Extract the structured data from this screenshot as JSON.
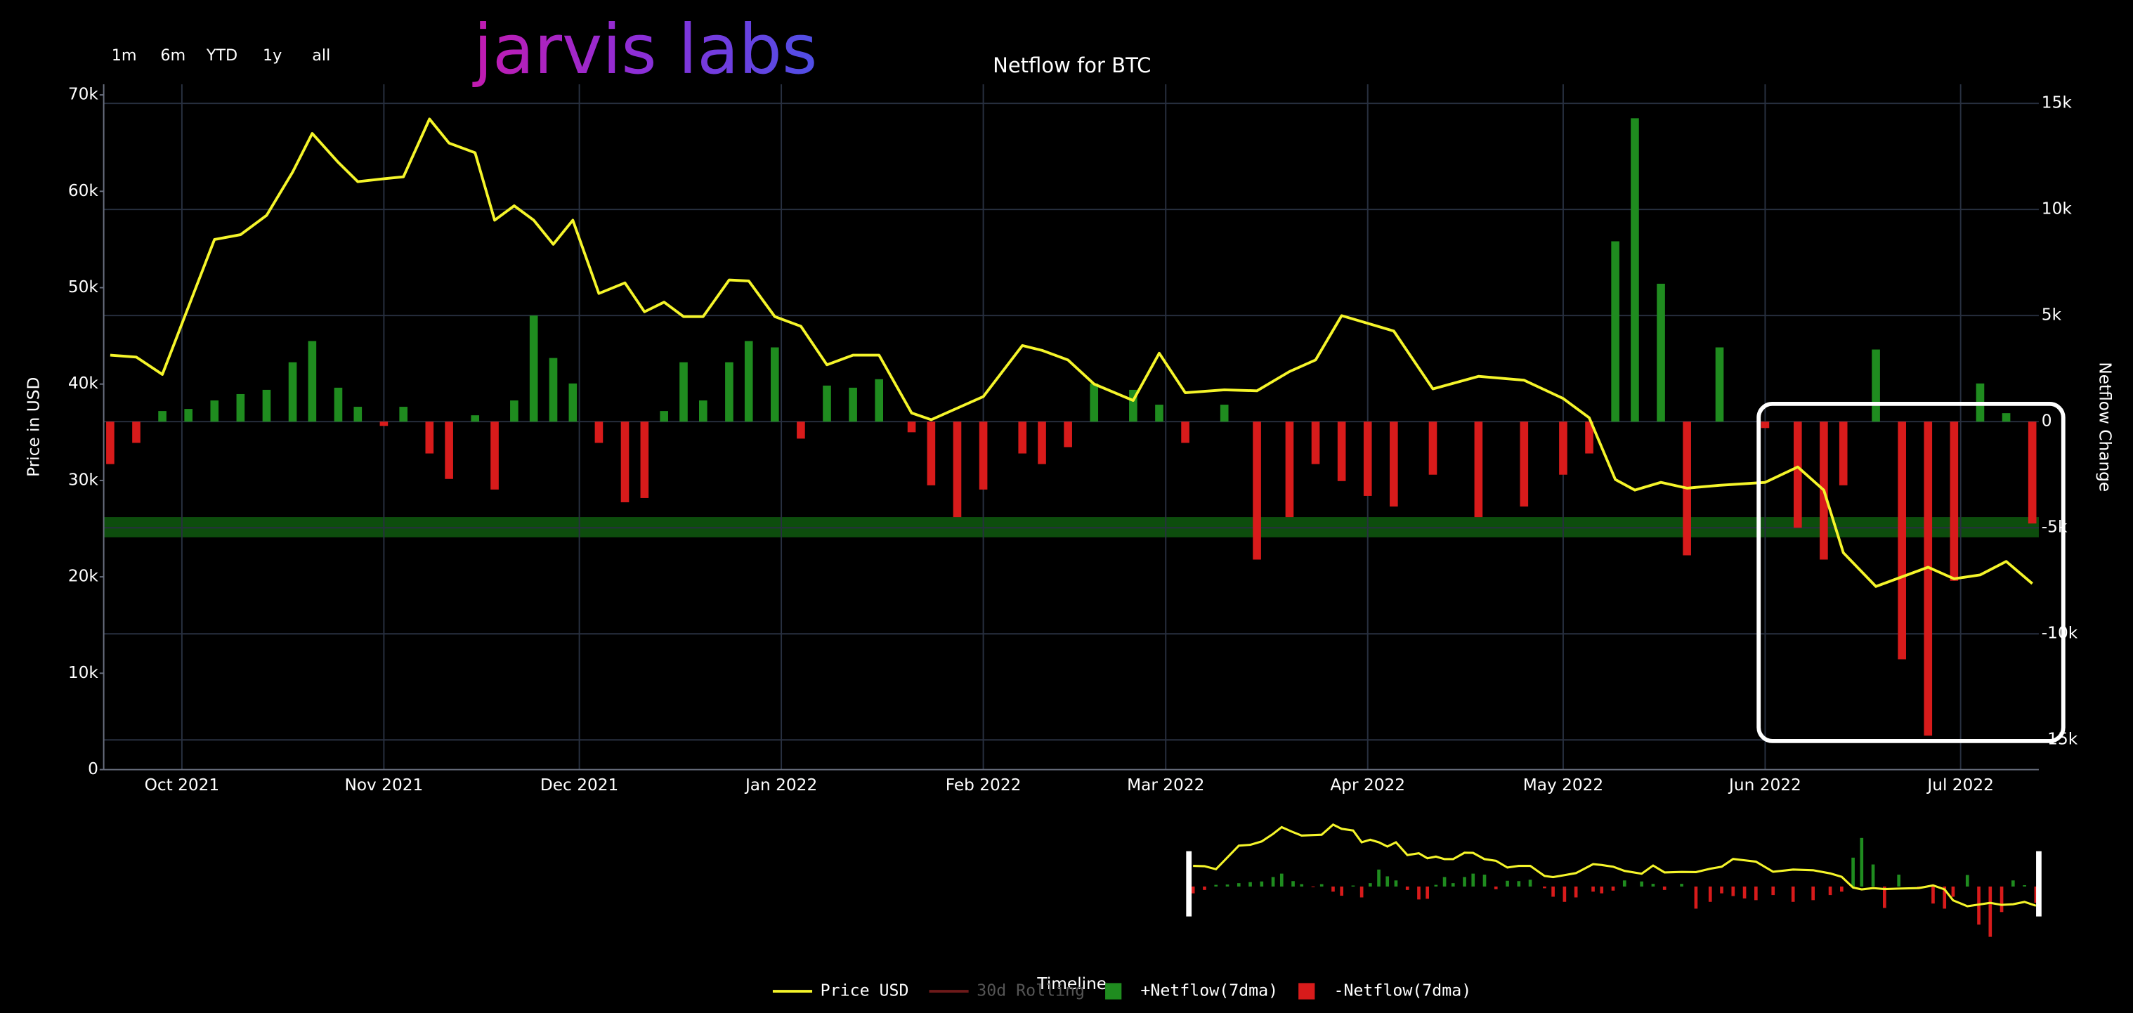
{
  "brand": "jarvis labs",
  "range_buttons": [
    "1m",
    "6m",
    "YTD",
    "1y",
    "all"
  ],
  "chart_data": {
    "type": "combo",
    "title": "Netflow for BTC",
    "y_label": "Price in USD",
    "y2_label": "Netflow Change",
    "range_slider_label": "Timeline",
    "x": [
      "2021-09-20",
      "2021-09-24",
      "2021-09-28",
      "2021-10-02",
      "2021-10-06",
      "2021-10-10",
      "2021-10-14",
      "2021-10-18",
      "2021-10-21",
      "2021-10-25",
      "2021-10-28",
      "2021-11-01",
      "2021-11-04",
      "2021-11-08",
      "2021-11-11",
      "2021-11-15",
      "2021-11-18",
      "2021-11-21",
      "2021-11-24",
      "2021-11-27",
      "2021-11-30",
      "2021-12-04",
      "2021-12-08",
      "2021-12-11",
      "2021-12-14",
      "2021-12-17",
      "2021-12-20",
      "2021-12-24",
      "2021-12-27",
      "2021-12-31",
      "2022-01-04",
      "2022-01-08",
      "2022-01-12",
      "2022-01-16",
      "2022-01-21",
      "2022-01-24",
      "2022-01-28",
      "2022-02-01",
      "2022-02-07",
      "2022-02-10",
      "2022-02-14",
      "2022-02-18",
      "2022-02-24",
      "2022-02-28",
      "2022-03-04",
      "2022-03-10",
      "2022-03-15",
      "2022-03-20",
      "2022-03-24",
      "2022-03-28",
      "2022-04-01",
      "2022-04-05",
      "2022-04-11",
      "2022-04-18",
      "2022-04-25",
      "2022-05-01",
      "2022-05-05",
      "2022-05-09",
      "2022-05-12",
      "2022-05-16",
      "2022-05-20",
      "2022-05-25",
      "2022-06-01",
      "2022-06-06",
      "2022-06-10",
      "2022-06-13",
      "2022-06-18",
      "2022-06-22",
      "2022-06-26",
      "2022-06-30",
      "2022-07-04",
      "2022-07-08",
      "2022-07-12"
    ],
    "series": [
      {
        "name": "Price USD",
        "type": "line",
        "axis": "y",
        "color": "#f5f52a",
        "values": [
          43000,
          42800,
          41000,
          48000,
          55000,
          55500,
          57500,
          62000,
          66000,
          63000,
          61000,
          61300,
          61500,
          67500,
          65000,
          64000,
          57000,
          58500,
          57000,
          54500,
          57000,
          49400,
          50500,
          47500,
          48500,
          47000,
          47000,
          50800,
          50700,
          47000,
          46000,
          42000,
          43000,
          43000,
          37000,
          36300,
          37500,
          38700,
          44000,
          43500,
          42500,
          40000,
          38300,
          43200,
          39100,
          39400,
          39300,
          41300,
          42500,
          47100,
          46300,
          45500,
          39500,
          40800,
          40400,
          38500,
          36500,
          30100,
          29000,
          29800,
          29200,
          29500,
          29800,
          31400,
          29000,
          22500,
          19000,
          20000,
          21000,
          19800,
          20200,
          21600,
          19300
        ]
      },
      {
        "name": "+Netflow(7dma)",
        "type": "bar",
        "axis": "y2",
        "color": "#1f8c1f",
        "values": [
          null,
          null,
          500,
          600,
          1000,
          1300,
          1500,
          2800,
          3800,
          1600,
          700,
          null,
          700,
          null,
          null,
          300,
          null,
          1000,
          5000,
          3000,
          1800,
          null,
          null,
          null,
          500,
          2800,
          1000,
          2800,
          3800,
          3500,
          null,
          1700,
          1600,
          2000,
          null,
          null,
          null,
          null,
          null,
          null,
          null,
          1800,
          1500,
          800,
          null,
          800,
          null,
          null,
          null,
          null,
          null,
          null,
          null,
          null,
          null,
          null,
          null,
          8500,
          14300,
          6500,
          null,
          3500,
          null,
          null,
          null,
          null,
          3400,
          null,
          null,
          null,
          1800,
          400,
          null
        ]
      },
      {
        "name": "-Netflow(7dma)",
        "type": "bar",
        "axis": "y2",
        "color": "#d81b1b",
        "values": [
          -2000,
          -1000,
          null,
          null,
          null,
          null,
          null,
          null,
          null,
          null,
          null,
          -200,
          null,
          -1500,
          -2700,
          null,
          -3200,
          null,
          null,
          null,
          null,
          -1000,
          -3800,
          -3600,
          null,
          null,
          null,
          null,
          null,
          null,
          -800,
          null,
          null,
          null,
          -500,
          -3000,
          -4500,
          -3200,
          -1500,
          -2000,
          -1200,
          null,
          null,
          null,
          -1000,
          null,
          -6500,
          -4500,
          -2000,
          -2800,
          -3500,
          -4000,
          -2500,
          -4500,
          -4000,
          -2500,
          -1500,
          null,
          null,
          null,
          -6300,
          null,
          -300,
          -5000,
          -6500,
          -3000,
          null,
          -11200,
          -14800,
          -7500,
          null,
          null,
          -4800
        ]
      }
    ],
    "legend_only": [
      {
        "name": "30d Rolling",
        "color": "#6e1a1a"
      }
    ],
    "highlight_band": [
      24100,
      26200
    ],
    "highlight_color": "#0f5a0f",
    "xlim": [
      "2021-09-19",
      "2022-07-13"
    ],
    "xticks": [
      {
        "value": "2021-10-01",
        "label": "Oct 2021"
      },
      {
        "value": "2021-11-01",
        "label": "Nov 2021"
      },
      {
        "value": "2021-12-01",
        "label": "Dec 2021"
      },
      {
        "value": "2022-01-01",
        "label": "Jan 2022"
      },
      {
        "value": "2022-02-01",
        "label": "Feb 2022"
      },
      {
        "value": "2022-03-01",
        "label": "Mar 2022"
      },
      {
        "value": "2022-04-01",
        "label": "Apr 2022"
      },
      {
        "value": "2022-05-01",
        "label": "May 2022"
      },
      {
        "value": "2022-06-01",
        "label": "Jun 2022"
      },
      {
        "value": "2022-07-01",
        "label": "Jul 2022"
      }
    ],
    "ylim": [
      0,
      71100
    ],
    "yticks": [
      0,
      {
        "value": 10000,
        "label": "10k"
      },
      {
        "value": 20000,
        "label": "20k"
      },
      {
        "value": 30000,
        "label": "30k"
      },
      {
        "value": 40000,
        "label": "40k"
      },
      {
        "value": 50000,
        "label": "50k"
      },
      {
        "value": 60000,
        "label": "60k"
      },
      {
        "value": 70000,
        "label": "70k"
      }
    ],
    "y2lim": [
      -16400,
      15900
    ],
    "y2ticks": [
      {
        "value": -15000,
        "label": "-15k"
      },
      {
        "value": -10000,
        "label": "-10k"
      },
      {
        "value": -5000,
        "label": "-5k"
      },
      0,
      {
        "value": 5000,
        "label": "5k"
      },
      {
        "value": 10000,
        "label": "10k"
      },
      {
        "value": 15000,
        "label": "15k"
      }
    ],
    "grid": true
  }
}
